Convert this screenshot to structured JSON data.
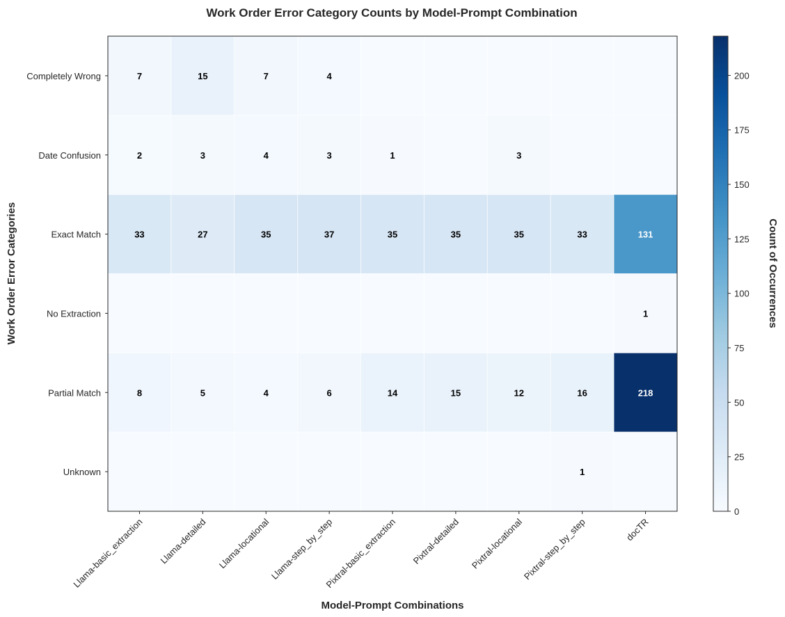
{
  "chart_data": {
    "type": "heatmap",
    "title": "Work Order Error Category Counts by Model-Prompt Combination",
    "xlabel": "Model-Prompt Combinations",
    "ylabel": "Work Order Error Categories",
    "columns": [
      "Llama-basic_extraction",
      "Llama-detailed",
      "Llama-locational",
      "Llama-step_by_step",
      "Pixtral-basic_extraction",
      "Pixtral-detailed",
      "Pixtral-locational",
      "Pixtral-step_by_step",
      "docTR"
    ],
    "rows": [
      "Completely Wrong",
      "Date Confusion",
      "Exact Match",
      "No Extraction",
      "Partial Match",
      "Unknown"
    ],
    "values": [
      [
        7,
        15,
        7,
        4,
        0,
        0,
        0,
        0,
        0
      ],
      [
        2,
        3,
        4,
        3,
        1,
        0,
        3,
        0,
        0
      ],
      [
        33,
        27,
        35,
        37,
        35,
        35,
        35,
        33,
        131
      ],
      [
        0,
        0,
        0,
        0,
        0,
        0,
        0,
        0,
        1
      ],
      [
        8,
        5,
        4,
        6,
        14,
        15,
        12,
        16,
        218
      ],
      [
        0,
        0,
        0,
        0,
        0,
        0,
        0,
        1,
        0
      ]
    ],
    "colorbar": {
      "label": "Count of Occurrences",
      "range": [
        0,
        218
      ],
      "ticks": [
        0,
        25,
        50,
        75,
        100,
        125,
        150,
        175,
        200
      ],
      "colormap": "Blues"
    },
    "grid": false
  }
}
